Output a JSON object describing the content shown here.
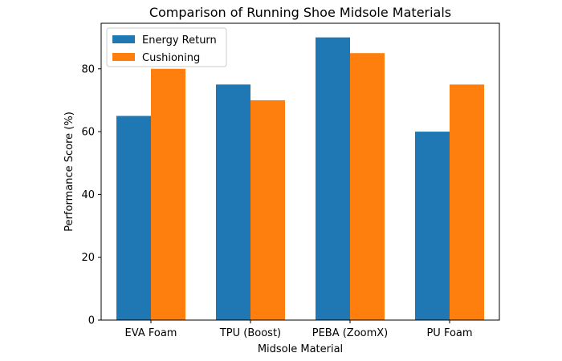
{
  "chart_data": {
    "type": "bar",
    "title": "Comparison of Running Shoe Midsole Materials",
    "xlabel": "Midsole Material",
    "ylabel": "Performance Score (%)",
    "categories": [
      "EVA Foam",
      "TPU (Boost)",
      "PEBA (ZoomX)",
      "PU Foam"
    ],
    "series": [
      {
        "name": "Energy Return",
        "values": [
          65,
          75,
          90,
          60
        ],
        "color": "#1f77b4"
      },
      {
        "name": "Cushioning",
        "values": [
          80,
          70,
          85,
          75
        ],
        "color": "#ff7f0e"
      }
    ],
    "ylim": [
      0,
      94.5
    ],
    "yticks": [
      0,
      20,
      40,
      60,
      80
    ],
    "legend_position": "upper-left",
    "grid": false
  }
}
